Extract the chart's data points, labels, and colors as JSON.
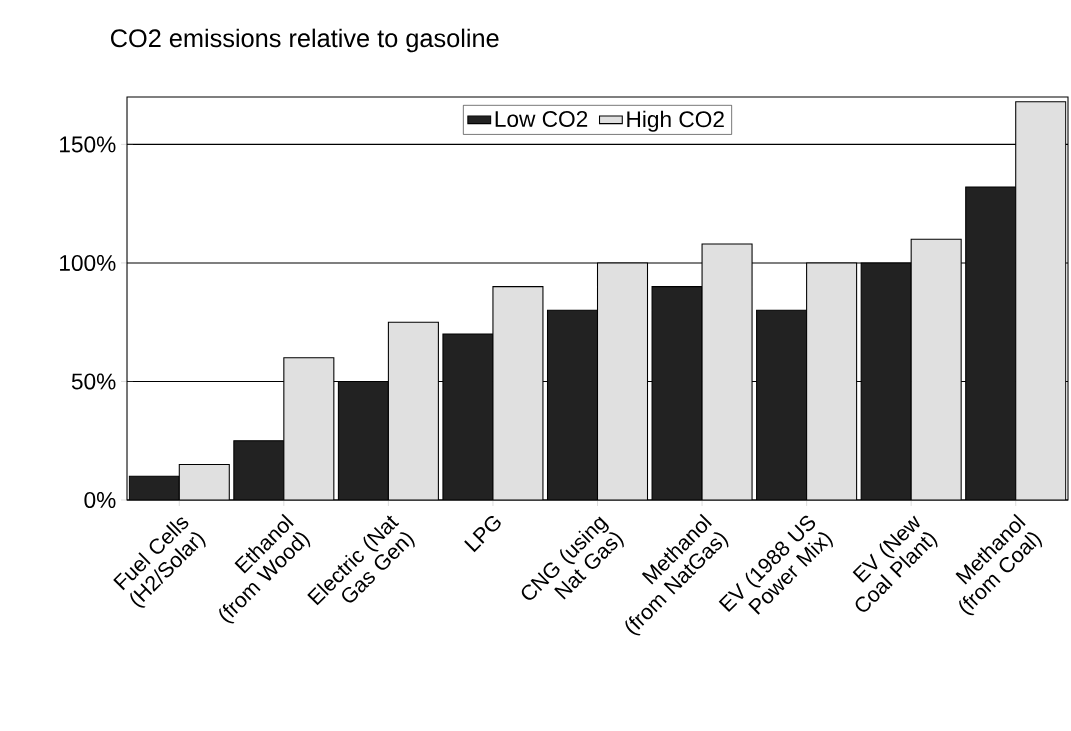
{
  "chart_data": {
    "type": "bar",
    "title": "CO2 emissions relative to gasoline",
    "categories": [
      "Fuel Cells (H2/Solar)",
      "Ethanol (from Wood)",
      "Electric (Nat Gas Gen)",
      "LPG",
      "CNG (using Nat Gas)",
      "Methanol (from NatGas)",
      "EV (1988 US Power Mix)",
      "EV (New Coal Plant)",
      "Methanol (from Coal)"
    ],
    "series": [
      {
        "name": "Low CO2",
        "color": "#222222",
        "values": [
          10,
          25,
          50,
          70,
          80,
          90,
          80,
          100,
          132
        ]
      },
      {
        "name": "High CO2",
        "color": "#e0e0e0",
        "values": [
          15,
          60,
          75,
          90,
          100,
          108,
          100,
          110,
          168
        ]
      }
    ],
    "ylim": [
      0,
      170
    ],
    "yticks": [
      {
        "value": 0,
        "label": "0%"
      },
      {
        "value": 50,
        "label": "50%"
      },
      {
        "value": 100,
        "label": "100%"
      },
      {
        "value": 150,
        "label": "150%"
      }
    ],
    "grid": "y",
    "legend": "top"
  }
}
